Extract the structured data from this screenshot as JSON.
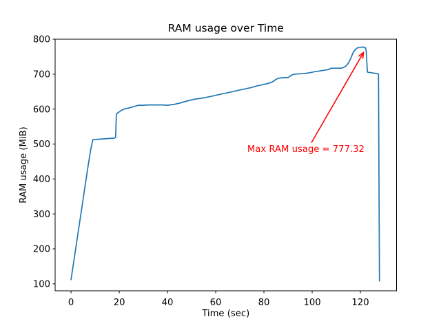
{
  "chart_data": {
    "type": "line",
    "title": "RAM usage over Time",
    "xlabel": "Time (sec)",
    "ylabel": "RAM usage (MiB)",
    "xlim": [
      -6.6,
      135
    ],
    "ylim": [
      80,
      800
    ],
    "x_ticks": [
      0,
      20,
      40,
      60,
      80,
      100,
      120
    ],
    "y_ticks": [
      100,
      200,
      300,
      400,
      500,
      600,
      700,
      800
    ],
    "grid": false,
    "legend": null,
    "background_color": "#ffffff",
    "frame_color": "#000000",
    "series": [
      {
        "name": "RAM usage",
        "color": "#1f77b4",
        "points": [
          [
            0,
            112
          ],
          [
            1,
            158
          ],
          [
            2,
            204
          ],
          [
            3,
            250
          ],
          [
            4,
            296
          ],
          [
            5,
            342
          ],
          [
            6,
            388
          ],
          [
            7,
            434
          ],
          [
            8,
            478
          ],
          [
            9,
            512
          ],
          [
            10,
            513
          ],
          [
            12,
            514
          ],
          [
            14,
            515
          ],
          [
            16,
            516
          ],
          [
            18,
            517
          ],
          [
            18.5,
            519
          ],
          [
            18.8,
            586
          ],
          [
            19.5,
            590
          ],
          [
            20,
            592
          ],
          [
            21,
            597
          ],
          [
            22,
            600
          ],
          [
            23,
            602
          ],
          [
            24,
            603
          ],
          [
            25,
            605
          ],
          [
            26,
            607
          ],
          [
            27,
            609
          ],
          [
            28,
            611
          ],
          [
            30,
            611
          ],
          [
            32,
            612
          ],
          [
            34,
            612
          ],
          [
            36,
            612
          ],
          [
            38,
            612
          ],
          [
            40,
            611
          ],
          [
            41,
            612
          ],
          [
            43,
            614
          ],
          [
            45,
            617
          ],
          [
            47,
            621
          ],
          [
            49,
            625
          ],
          [
            51,
            628
          ],
          [
            53,
            630
          ],
          [
            55,
            632
          ],
          [
            57,
            635
          ],
          [
            59,
            638
          ],
          [
            61,
            641
          ],
          [
            63,
            644
          ],
          [
            65,
            647
          ],
          [
            67,
            650
          ],
          [
            69,
            653
          ],
          [
            71,
            656
          ],
          [
            73,
            659
          ],
          [
            75,
            662
          ],
          [
            77,
            666
          ],
          [
            79,
            669
          ],
          [
            80,
            671
          ],
          [
            81,
            672
          ],
          [
            82,
            674
          ],
          [
            83,
            676
          ],
          [
            84,
            680
          ],
          [
            85,
            685
          ],
          [
            86,
            688
          ],
          [
            88,
            690
          ],
          [
            90,
            690
          ],
          [
            91,
            695
          ],
          [
            92,
            699
          ],
          [
            93,
            700
          ],
          [
            95,
            701
          ],
          [
            97,
            702
          ],
          [
            99,
            704
          ],
          [
            101,
            707
          ],
          [
            103,
            709
          ],
          [
            105,
            711
          ],
          [
            106,
            712
          ],
          [
            107,
            714
          ],
          [
            108,
            717
          ],
          [
            110,
            717
          ],
          [
            112,
            717
          ],
          [
            113,
            719
          ],
          [
            114,
            723
          ],
          [
            115,
            731
          ],
          [
            116,
            745
          ],
          [
            117,
            762
          ],
          [
            118,
            771
          ],
          [
            119,
            776
          ],
          [
            120,
            777
          ],
          [
            121.3,
            777.32
          ],
          [
            122,
            776
          ],
          [
            122.4,
            768
          ],
          [
            122.9,
            706
          ],
          [
            123.5,
            705
          ],
          [
            124.5,
            704
          ],
          [
            125.5,
            703
          ],
          [
            126.5,
            702
          ],
          [
            127.2,
            701
          ],
          [
            127.5,
            700
          ],
          [
            127.9,
            108
          ]
        ]
      }
    ],
    "annotation": {
      "label": "Max RAM usage = 777.32",
      "max_value": 777.32,
      "color": "#ff0000",
      "text_xy": [
        97.4,
        477
      ],
      "arrow_from": [
        99.7,
        504
      ],
      "arrow_to": [
        121.3,
        762
      ]
    }
  }
}
